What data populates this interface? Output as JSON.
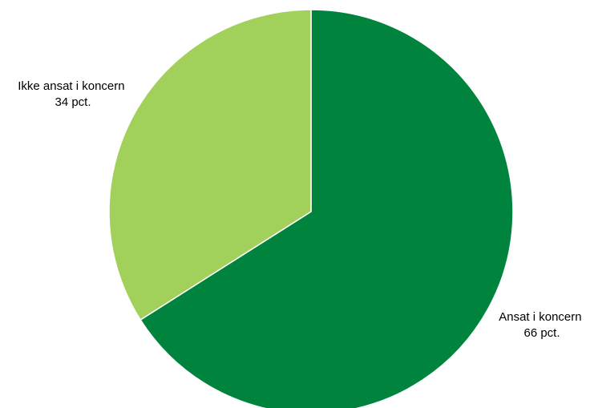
{
  "chart_data": {
    "type": "pie",
    "title": "",
    "slices": [
      {
        "label": "Ansat i koncern",
        "value": 66,
        "value_label": "66 pct.",
        "color": "#00843d"
      },
      {
        "label": "Ikke ansat i koncern",
        "value": 34,
        "value_label": "34 pct.",
        "color": "#a2d15b"
      }
    ],
    "start": "12 o'clock",
    "direction": "clockwise",
    "slice_border_color": "#ffffff"
  }
}
